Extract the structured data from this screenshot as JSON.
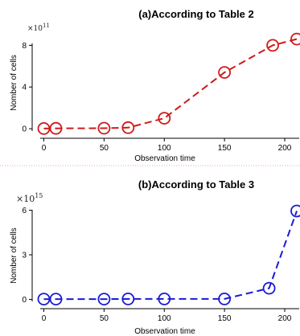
{
  "chart_data": [
    {
      "type": "line",
      "title": "(a)According to Table 2",
      "xlabel": "Observation time",
      "ylabel": "Nomber of cells",
      "y_multiplier_base": "×10",
      "y_multiplier_exp": "11",
      "xlim": [
        -3,
        212
      ],
      "ylim": [
        -0.3,
        8.8
      ],
      "xticks": [
        0,
        50,
        100,
        150,
        200
      ],
      "yticks": [
        0,
        4,
        8
      ],
      "grid": false,
      "color": "#d01919",
      "series": [
        {
          "x": [
            0,
            10,
            50,
            70,
            100,
            150,
            190,
            210
          ],
          "y": [
            0.02,
            0.03,
            0.05,
            0.1,
            1.0,
            5.4,
            8.0,
            8.6
          ]
        }
      ]
    },
    {
      "type": "line",
      "title": "(b)According to Table 3",
      "xlabel": "Observation time",
      "ylabel": "Nomber of cells",
      "y_multiplier_base": "×10",
      "y_multiplier_exp": "15",
      "xlim": [
        -3,
        212
      ],
      "ylim": [
        -0.3,
        6.3
      ],
      "xticks": [
        0,
        50,
        100,
        150,
        200
      ],
      "yticks": [
        0,
        3,
        6
      ],
      "grid": false,
      "color": "#1a1ad6",
      "series": [
        {
          "x": [
            0,
            10,
            50,
            70,
            100,
            150,
            187,
            210
          ],
          "y": [
            0.02,
            0.02,
            0.02,
            0.03,
            0.03,
            0.03,
            0.75,
            5.95
          ]
        }
      ]
    }
  ]
}
